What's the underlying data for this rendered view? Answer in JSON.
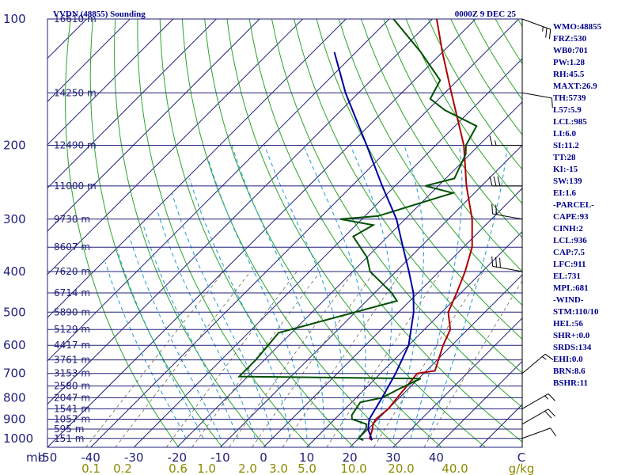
{
  "header": {
    "station": "VVDN (48855) Sounding",
    "time": "0000Z  9 DEC 25"
  },
  "chart_data": {
    "type": "line",
    "title": "VVDN (48855) Sounding",
    "x_axis": {
      "label_unit_left": "mb",
      "label_unit_right": "C",
      "ticks": [
        -50,
        -40,
        -30,
        -20,
        -10,
        0,
        10,
        20,
        30,
        40
      ],
      "right_tick": "C"
    },
    "y_axis": {
      "scale": "log",
      "range": [
        1000,
        100
      ],
      "ticks": [
        100,
        200,
        300,
        400,
        500,
        600,
        700,
        800,
        900,
        1000
      ]
    },
    "mixing_ratio_ticks": [
      "0.1",
      "0.2",
      "0.6",
      "1.0",
      "2.0",
      "3.0",
      "5.0",
      "10.0",
      "20.0",
      "40.0",
      "g/kg"
    ],
    "height_levels": [
      {
        "p": 100,
        "label": "16610 m"
      },
      {
        "p": 150,
        "label": "14250 m"
      },
      {
        "p": 200,
        "label": "12490 m"
      },
      {
        "p": 250,
        "label": "11000 m"
      },
      {
        "p": 300,
        "label": "9730 m"
      },
      {
        "p": 350,
        "label": "8607 m"
      },
      {
        "p": 400,
        "label": "7620 m"
      },
      {
        "p": 450,
        "label": "6714 m"
      },
      {
        "p": 500,
        "label": "5890 m"
      },
      {
        "p": 550,
        "label": "5129 m"
      },
      {
        "p": 600,
        "label": "4417 m"
      },
      {
        "p": 650,
        "label": "3761 m"
      },
      {
        "p": 700,
        "label": "3153 m"
      },
      {
        "p": 750,
        "label": "2580 m"
      },
      {
        "p": 800,
        "label": "2047 m"
      },
      {
        "p": 850,
        "label": "1541 m"
      },
      {
        "p": 900,
        "label": "1057 m"
      },
      {
        "p": 950,
        "label": "595 m"
      },
      {
        "p": 1000,
        "label": "151 m"
      }
    ],
    "series": [
      {
        "name": "",
        "color": "#b00000",
        "points": [
          [
            1010,
            23.5
          ],
          [
            1000,
            22.5
          ],
          [
            950,
            21
          ],
          [
            925,
            20
          ],
          [
            900,
            19.5
          ],
          [
            850,
            20
          ],
          [
            800,
            19.5
          ],
          [
            750,
            19
          ],
          [
            700,
            18.5
          ],
          [
            690,
            22
          ],
          [
            600,
            18
          ],
          [
            550,
            16
          ],
          [
            500,
            11.5
          ],
          [
            450,
            9
          ],
          [
            400,
            6
          ],
          [
            350,
            2
          ],
          [
            300,
            -4.5
          ],
          [
            250,
            -13.5
          ],
          [
            200,
            -23.5
          ],
          [
            150,
            -38.5
          ],
          [
            120,
            -50
          ],
          [
            100,
            -59
          ]
        ]
      },
      {
        "name": "",
        "color": "#005000",
        "points": [
          [
            1010,
            21.5
          ],
          [
            1000,
            20
          ],
          [
            950,
            19.5
          ],
          [
            925,
            18.5
          ],
          [
            900,
            14
          ],
          [
            880,
            13
          ],
          [
            850,
            12.5
          ],
          [
            820,
            12
          ],
          [
            800,
            16
          ],
          [
            760,
            18
          ],
          [
            720,
            20.5
          ],
          [
            712,
            -22
          ],
          [
            650,
            -22
          ],
          [
            600,
            -22.5
          ],
          [
            560,
            -23
          ],
          [
            470,
            -3
          ],
          [
            450,
            -6
          ],
          [
            400,
            -16
          ],
          [
            370,
            -20
          ],
          [
            330,
            -28
          ],
          [
            310,
            -26
          ],
          [
            300,
            -35
          ],
          [
            295,
            -27
          ],
          [
            260,
            -15
          ],
          [
            250,
            -23
          ],
          [
            240,
            -18
          ],
          [
            210,
            -21
          ],
          [
            200,
            -23
          ],
          [
            180,
            -25
          ],
          [
            165,
            -36
          ],
          [
            155,
            -42
          ],
          [
            140,
            -44
          ],
          [
            120,
            -55
          ],
          [
            100,
            -69
          ]
        ]
      },
      {
        "name": "",
        "color": "#0000a0",
        "points": [
          [
            1010,
            23.5
          ],
          [
            950,
            20
          ],
          [
            900,
            18
          ],
          [
            800,
            16
          ],
          [
            700,
            13.5
          ],
          [
            600,
            10
          ],
          [
            500,
            3.5
          ],
          [
            450,
            -1
          ],
          [
            400,
            -7
          ],
          [
            350,
            -14
          ],
          [
            300,
            -22
          ],
          [
            250,
            -33
          ],
          [
            200,
            -46
          ],
          [
            150,
            -63
          ],
          [
            120,
            -75
          ]
        ]
      }
    ],
    "wind_barbs": [
      {
        "p": 100,
        "dir": 110,
        "spd": 25
      },
      {
        "p": 150,
        "dir": 100,
        "spd": 10
      },
      {
        "p": 200,
        "dir": 270,
        "spd": 15
      },
      {
        "p": 250,
        "dir": 270,
        "spd": 30
      },
      {
        "p": 300,
        "dir": 280,
        "spd": 20
      },
      {
        "p": 400,
        "dir": 280,
        "spd": 30
      },
      {
        "p": 700,
        "dir": 50,
        "spd": 15
      },
      {
        "p": 850,
        "dir": 60,
        "spd": 15
      },
      {
        "p": 925,
        "dir": 60,
        "spd": 20
      },
      {
        "p": 1000,
        "dir": 70,
        "spd": 10
      }
    ]
  },
  "indices": [
    "WMO:48855",
    "FRZ:530",
    "WB0:701",
    "PW:1.28",
    "RH:45.5",
    "MAXT:26.9",
    "TH:5739",
    "L57:5.9",
    "LCL:985",
    "LI:6.0",
    "SI:11.2",
    "TT:28",
    "KI:-15",
    "SW:139",
    "EI:1.6",
    "-PARCEL-",
    "CAPE:93",
    "CINH:2",
    "LCL:936",
    "CAP:7.5",
    "LFC:911",
    "EL:731",
    "MPL:681",
    "-WIND-",
    "STM:110/10",
    "HEL:56",
    "SHR+:0.0",
    "SRDS:134",
    "EHI:0.0",
    "BRN:8.6",
    "BSHR:11"
  ],
  "colors": {
    "isobar": "#1f1f7a",
    "isotherm": "#1f1f7a",
    "dry_adiabat": "#2aa52a",
    "moist_adiabat": "#1e9ad6",
    "mixing_ratio": "#6b6b50",
    "frame": "#1f1f7a"
  }
}
